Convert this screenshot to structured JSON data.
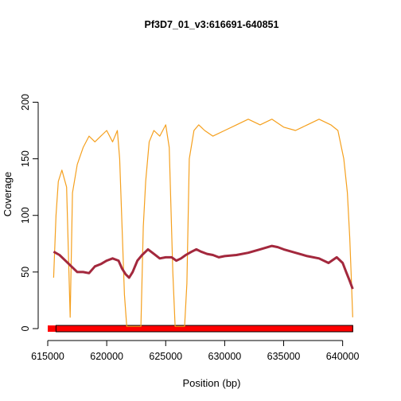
{
  "chart_data": {
    "type": "line",
    "title": "Pf3D7_01_v3:616691-640851",
    "xlabel": "Position (bp)",
    "ylabel": "Coverage",
    "xlim": [
      615000,
      640900
    ],
    "ylim": [
      0,
      220
    ],
    "x_ticks": [
      615000,
      620000,
      625000,
      630000,
      635000,
      640000
    ],
    "x_tick_labels": [
      "615000",
      "620000",
      "625000",
      "630000",
      "635000",
      "640000"
    ],
    "y_ticks": [
      0,
      50,
      100,
      150,
      200
    ],
    "y_tick_labels": [
      "0",
      "50",
      "100",
      "150",
      "200"
    ],
    "grid": false,
    "legend": "none",
    "series": [
      {
        "color": "#f5a01e",
        "points": [
          [
            615500,
            45
          ],
          [
            615700,
            100
          ],
          [
            615900,
            130
          ],
          [
            616200,
            140
          ],
          [
            616600,
            125
          ],
          [
            616900,
            10
          ],
          [
            617100,
            120
          ],
          [
            617500,
            145
          ],
          [
            618000,
            160
          ],
          [
            618500,
            170
          ],
          [
            619000,
            165
          ],
          [
            619500,
            170
          ],
          [
            620000,
            175
          ],
          [
            620500,
            165
          ],
          [
            620900,
            175
          ],
          [
            621100,
            150
          ],
          [
            621300,
            90
          ],
          [
            621500,
            30
          ],
          [
            621700,
            2
          ],
          [
            622900,
            2
          ],
          [
            623100,
            90
          ],
          [
            623300,
            130
          ],
          [
            623600,
            165
          ],
          [
            624000,
            175
          ],
          [
            624500,
            170
          ],
          [
            625000,
            180
          ],
          [
            625300,
            160
          ],
          [
            625600,
            50
          ],
          [
            625800,
            2
          ],
          [
            626600,
            2
          ],
          [
            626800,
            40
          ],
          [
            627000,
            150
          ],
          [
            627400,
            175
          ],
          [
            627800,
            180
          ],
          [
            628300,
            175
          ],
          [
            629000,
            170
          ],
          [
            630000,
            175
          ],
          [
            631000,
            180
          ],
          [
            632000,
            185
          ],
          [
            633000,
            180
          ],
          [
            634000,
            185
          ],
          [
            635000,
            178
          ],
          [
            636000,
            175
          ],
          [
            637000,
            180
          ],
          [
            638000,
            185
          ],
          [
            639000,
            180
          ],
          [
            639600,
            175
          ],
          [
            640100,
            150
          ],
          [
            640400,
            120
          ],
          [
            640600,
            80
          ],
          [
            640750,
            40
          ],
          [
            640850,
            10
          ]
        ]
      },
      {
        "color": "#a3283d",
        "points": [
          [
            615500,
            68
          ],
          [
            616000,
            65
          ],
          [
            616500,
            60
          ],
          [
            617000,
            55
          ],
          [
            617500,
            50
          ],
          [
            618000,
            50
          ],
          [
            618500,
            49
          ],
          [
            619000,
            55
          ],
          [
            619500,
            57
          ],
          [
            620000,
            60
          ],
          [
            620500,
            62
          ],
          [
            621000,
            60
          ],
          [
            621300,
            53
          ],
          [
            621600,
            48
          ],
          [
            621900,
            45
          ],
          [
            622200,
            50
          ],
          [
            622600,
            60
          ],
          [
            623000,
            65
          ],
          [
            623500,
            70
          ],
          [
            624000,
            66
          ],
          [
            624500,
            62
          ],
          [
            625000,
            63
          ],
          [
            625500,
            63
          ],
          [
            625900,
            60
          ],
          [
            626300,
            62
          ],
          [
            626700,
            65
          ],
          [
            627200,
            68
          ],
          [
            627600,
            70
          ],
          [
            628000,
            68
          ],
          [
            628500,
            66
          ],
          [
            629000,
            65
          ],
          [
            629500,
            63
          ],
          [
            630000,
            64
          ],
          [
            631000,
            65
          ],
          [
            632000,
            67
          ],
          [
            633000,
            70
          ],
          [
            634000,
            73
          ],
          [
            634500,
            72
          ],
          [
            635000,
            70
          ],
          [
            636000,
            67
          ],
          [
            637000,
            64
          ],
          [
            638000,
            62
          ],
          [
            638800,
            58
          ],
          [
            639500,
            63
          ],
          [
            640000,
            58
          ],
          [
            640300,
            50
          ],
          [
            640600,
            42
          ],
          [
            640850,
            35
          ]
        ]
      }
    ],
    "contig_bar": {
      "start": 615000,
      "end": 640900,
      "boxed_start": 615700,
      "boxed_end": 640850,
      "color": "#ff0000"
    }
  }
}
